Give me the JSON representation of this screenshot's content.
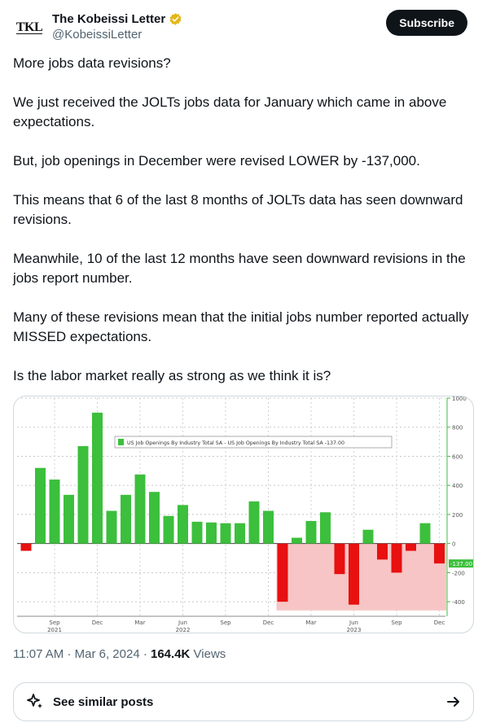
{
  "author": {
    "avatar_text": "TKL",
    "display_name": "The Kobeissi Letter",
    "handle": "@KobeissiLetter"
  },
  "subscribe_label": "Subscribe",
  "tweet": {
    "paragraphs": [
      "More jobs data revisions?",
      "We just received the JOLTs jobs data for January which came in above expectations.",
      "But, job openings in December were revised LOWER by -137,000.",
      "This means that 6 of the last 8 months of JOLTs data has seen downward revisions.",
      "Meanwhile, 10 of the last 12 months have seen downward revisions in the jobs report number.",
      "Many of these revisions mean that the initial jobs number reported actually MISSED expectations.",
      "Is the labor market really as strong as we think it is?"
    ]
  },
  "meta": {
    "time": "11:07 AM",
    "separator": "·",
    "date": "Mar 6, 2024",
    "views_count": "164.4K",
    "views_label": "Views"
  },
  "similar_posts_label": "See similar posts",
  "colors": {
    "positive_bar": "#3cbf3c",
    "negative_bar": "#e81010",
    "negative_region": "#f7c5c5",
    "last_value_bg": "#3cbf3c"
  },
  "chart_data": {
    "type": "bar",
    "legend": "US Job Openings By Industry Total SA - US Job Openings By Industry Total SA -137.00",
    "last_value_label": "-137.00",
    "ylim": [
      -500,
      1000
    ],
    "yticks": [
      1000,
      800,
      600,
      400,
      200,
      0,
      -200,
      -400
    ],
    "x_tick_labels": [
      {
        "index": 2,
        "month": "Sep",
        "year": "2021"
      },
      {
        "index": 5,
        "month": "Dec",
        "year": ""
      },
      {
        "index": 8,
        "month": "Mar",
        "year": ""
      },
      {
        "index": 11,
        "month": "Jun",
        "year": "2022"
      },
      {
        "index": 14,
        "month": "Sep",
        "year": ""
      },
      {
        "index": 17,
        "month": "Dec",
        "year": ""
      },
      {
        "index": 20,
        "month": "Mar",
        "year": ""
      },
      {
        "index": 23,
        "month": "Jun",
        "year": "2023"
      },
      {
        "index": 26,
        "month": "Sep",
        "year": ""
      },
      {
        "index": 29,
        "month": "Dec",
        "year": ""
      }
    ],
    "values": [
      -50,
      520,
      440,
      335,
      670,
      900,
      225,
      335,
      475,
      355,
      190,
      265,
      150,
      145,
      140,
      140,
      290,
      225,
      -400,
      40,
      155,
      215,
      -210,
      -420,
      95,
      -110,
      -200,
      -50,
      140,
      -137
    ],
    "negative_region_start_index": 18
  }
}
